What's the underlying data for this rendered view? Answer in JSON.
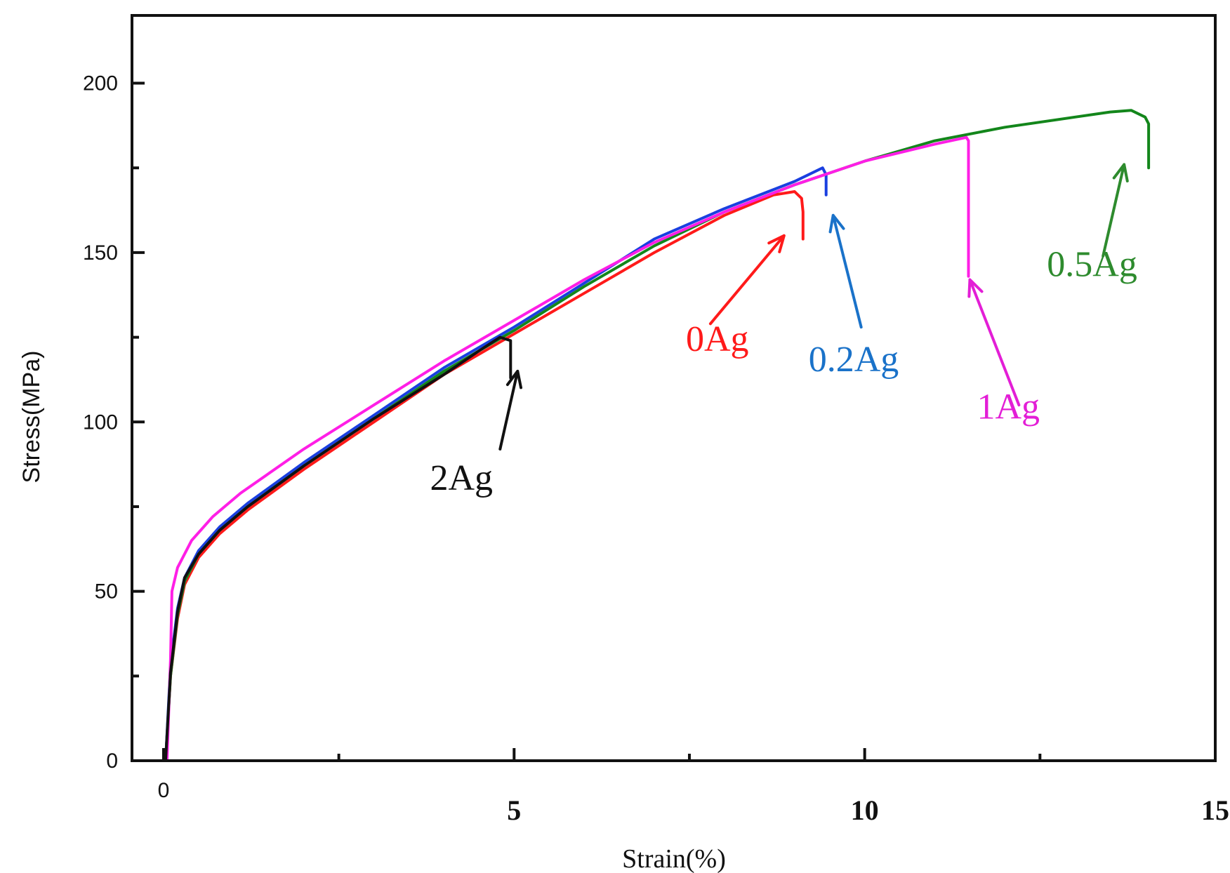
{
  "chart_data": {
    "type": "line",
    "title": "",
    "xlabel": "Strain(%)",
    "ylabel": "Stress(MPa)",
    "xlim": [
      -0.45,
      15
    ],
    "ylim": [
      0,
      220
    ],
    "x_ticks": [
      {
        "value": 0,
        "label": "0",
        "bold": false
      },
      {
        "value": 5,
        "label": "5",
        "bold": true
      },
      {
        "value": 10,
        "label": "10",
        "bold": true
      },
      {
        "value": 15,
        "label": "15",
        "bold": true
      }
    ],
    "x_minor_ticks": [
      2.5,
      7.5,
      12.5
    ],
    "y_ticks": [
      {
        "value": 0,
        "label": "0"
      },
      {
        "value": 50,
        "label": "50"
      },
      {
        "value": 100,
        "label": "100"
      },
      {
        "value": 150,
        "label": "150"
      },
      {
        "value": 200,
        "label": "200"
      }
    ],
    "y_minor_ticks": [
      25,
      75,
      125,
      175
    ],
    "grid": false,
    "series": [
      {
        "name": "0Ag",
        "color": "#ff1a1a",
        "x": [
          0.03,
          0.1,
          0.2,
          0.3,
          0.5,
          0.8,
          1.2,
          2,
          3,
          4,
          5,
          6,
          7,
          8,
          8.7,
          9.0,
          9.1,
          9.12,
          9.12
        ],
        "y": [
          0,
          25,
          42,
          52,
          60,
          67,
          74,
          86,
          100,
          114,
          126,
          138,
          150,
          161,
          167,
          168,
          166,
          162,
          154
        ]
      },
      {
        "name": "0.2Ag",
        "color": "#1a3fe0",
        "x": [
          0.03,
          0.1,
          0.2,
          0.3,
          0.5,
          0.8,
          1.2,
          2,
          3,
          4,
          5,
          6,
          7,
          8,
          9,
          9.4,
          9.45,
          9.45
        ],
        "y": [
          0,
          28,
          45,
          54,
          62,
          69,
          76,
          88,
          102,
          116,
          128,
          141,
          154,
          163,
          171,
          175,
          173,
          167
        ]
      },
      {
        "name": "0.5Ag",
        "color": "#13861b",
        "x": [
          0.03,
          0.1,
          0.2,
          0.3,
          0.5,
          0.8,
          1.2,
          2,
          3,
          4,
          5,
          6,
          7,
          8,
          9,
          10,
          11,
          12,
          13,
          13.5,
          13.8,
          14.0,
          14.05,
          14.05,
          14.05
        ],
        "y": [
          0,
          25,
          43,
          53,
          61,
          68,
          75,
          87,
          101,
          115,
          127,
          140,
          152,
          162,
          170,
          177,
          183,
          187,
          190,
          191.5,
          192,
          190,
          188,
          182,
          175
        ]
      },
      {
        "name": "1Ag",
        "color": "#ff1ee6",
        "x": [
          0.05,
          0.1,
          0.12,
          0.2,
          0.4,
          0.7,
          1.1,
          2,
          3,
          4,
          5,
          6,
          7,
          8,
          9,
          10,
          11,
          11.45,
          11.48,
          11.48,
          11.48
        ],
        "y": [
          0,
          30,
          50,
          57,
          65,
          72,
          79,
          92,
          105,
          118,
          130,
          142,
          153,
          162,
          170,
          177,
          182,
          184,
          183,
          160,
          143
        ]
      },
      {
        "name": "2Ag",
        "color": "#111111",
        "x": [
          0.03,
          0.1,
          0.2,
          0.3,
          0.5,
          0.8,
          1.2,
          2,
          3,
          4,
          4.5,
          4.8,
          4.95,
          4.95
        ],
        "y": [
          0,
          26,
          44,
          54,
          61,
          68,
          75,
          87,
          101,
          114,
          121,
          125,
          124,
          113
        ]
      }
    ],
    "annotations": [
      {
        "text": "0Ag",
        "color": "#ff1a1a",
        "label_x": 7.45,
        "label_y": 121,
        "arrow_from": [
          7.8,
          129
        ],
        "arrow_to": [
          8.85,
          155
        ]
      },
      {
        "text": "0.2Ag",
        "color": "#1a72c9",
        "label_x": 9.2,
        "label_y": 115,
        "arrow_from": [
          9.95,
          128
        ],
        "arrow_to": [
          9.55,
          161
        ]
      },
      {
        "text": "0.5Ag",
        "color": "#2e8b2e",
        "label_x": 12.6,
        "label_y": 143,
        "arrow_from": [
          13.4,
          149
        ],
        "arrow_to": [
          13.7,
          176
        ]
      },
      {
        "text": "1Ag",
        "color": "#e31ed6",
        "label_x": 11.6,
        "label_y": 101,
        "arrow_from": [
          12.2,
          105
        ],
        "arrow_to": [
          11.5,
          142
        ]
      },
      {
        "text": "2Ag",
        "color": "#111111",
        "label_x": 3.8,
        "label_y": 80,
        "arrow_from": [
          4.8,
          92
        ],
        "arrow_to": [
          5.05,
          115
        ]
      }
    ]
  }
}
